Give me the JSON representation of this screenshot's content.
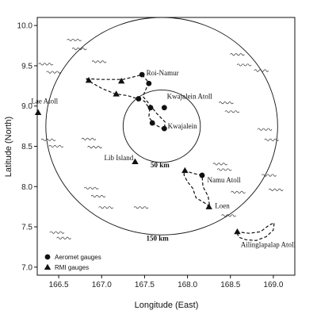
{
  "chart_data": {
    "type": "map",
    "xlabel": "Longitude (East)",
    "ylabel": "Latitude (North)",
    "xlim": [
      166.25,
      169.25
    ],
    "ylim": [
      6.9,
      10.1
    ],
    "x_ticks": [
      166.5,
      167.0,
      167.5,
      168.0,
      168.5,
      169.0
    ],
    "x_tick_labels": [
      "166.5",
      "167.0",
      "167.5",
      "168.0",
      "168.5",
      "169.0"
    ],
    "y_ticks": [
      7.0,
      7.5,
      8.0,
      8.5,
      9.0,
      9.5,
      10.0
    ],
    "y_tick_labels": [
      "7.0",
      "7.5",
      "8.0",
      "8.5",
      "9.0",
      "9.5",
      "10.0"
    ],
    "center": {
      "lon": 167.7,
      "lat": 8.75
    },
    "range_rings": [
      {
        "label": "50 km",
        "radius_deg": 0.45,
        "label_pos": {
          "lon": 167.68,
          "lat": 8.24
        }
      },
      {
        "label": "150 km",
        "radius_deg": 1.35,
        "label_pos": {
          "lon": 167.65,
          "lat": 7.33
        }
      }
    ],
    "aeromet_gauges": [
      {
        "lon": 167.47,
        "lat": 9.39
      },
      {
        "lon": 167.55,
        "lat": 9.28
      },
      {
        "lon": 167.43,
        "lat": 9.09
      },
      {
        "lon": 167.57,
        "lat": 8.98
      },
      {
        "lon": 167.73,
        "lat": 8.98
      },
      {
        "lon": 167.59,
        "lat": 8.79
      },
      {
        "lon": 167.73,
        "lat": 8.72
      },
      {
        "lon": 168.17,
        "lat": 8.14
      }
    ],
    "rmi_gauges": [
      {
        "lon": 166.85,
        "lat": 9.32
      },
      {
        "lon": 167.23,
        "lat": 9.31
      },
      {
        "lon": 167.17,
        "lat": 9.15
      },
      {
        "lon": 166.26,
        "lat": 8.92
      },
      {
        "lon": 167.39,
        "lat": 8.31
      },
      {
        "lon": 167.97,
        "lat": 8.2
      },
      {
        "lon": 168.25,
        "lat": 7.75
      },
      {
        "lon": 168.58,
        "lat": 7.44
      }
    ],
    "place_labels": [
      {
        "text": "Roi-Namur",
        "lon": 167.52,
        "lat": 9.38
      },
      {
        "text": "Kwajalein Atoll",
        "lon": 167.76,
        "lat": 9.09
      },
      {
        "text": "Kwajalein",
        "lon": 167.77,
        "lat": 8.72
      },
      {
        "text": "Lae Atoll",
        "lon": 166.18,
        "lat": 9.03
      },
      {
        "text": "Lib Island",
        "lon": 167.03,
        "lat": 8.33
      },
      {
        "text": "Namu Atoll",
        "lon": 168.23,
        "lat": 8.05
      },
      {
        "text": "Loen",
        "lon": 168.32,
        "lat": 7.73
      },
      {
        "text": "Ailinglapalap Atoll",
        "lon": 168.62,
        "lat": 7.25
      }
    ],
    "legend": {
      "position": "bottom-left",
      "items": [
        {
          "symbol": "circle",
          "label": "Aeromet gauges"
        },
        {
          "symbol": "triangle",
          "label": "RMI gauges"
        }
      ]
    },
    "atoll_outlines": [
      [
        [
          166.82,
          9.34
        ],
        [
          167.0,
          9.33
        ],
        [
          167.25,
          9.33
        ],
        [
          167.44,
          9.38
        ],
        [
          167.47,
          9.39
        ],
        [
          167.55,
          9.29
        ],
        [
          167.5,
          9.17
        ],
        [
          167.48,
          9.12
        ],
        [
          167.56,
          9.02
        ],
        [
          167.64,
          8.91
        ],
        [
          167.74,
          8.8
        ],
        [
          167.73,
          8.71
        ],
        [
          167.62,
          8.77
        ],
        [
          167.55,
          8.86
        ],
        [
          167.56,
          8.96
        ],
        [
          167.5,
          9.06
        ],
        [
          167.42,
          9.09
        ],
        [
          167.3,
          9.13
        ],
        [
          167.16,
          9.15
        ],
        [
          167.0,
          9.22
        ],
        [
          166.85,
          9.31
        ],
        [
          166.82,
          9.34
        ]
      ],
      [
        [
          167.96,
          8.2
        ],
        [
          168.08,
          8.16
        ],
        [
          168.17,
          8.14
        ],
        [
          168.18,
          8.0
        ],
        [
          168.24,
          7.88
        ],
        [
          168.26,
          7.75
        ],
        [
          168.21,
          7.79
        ],
        [
          168.1,
          7.86
        ],
        [
          168.06,
          7.98
        ],
        [
          168.0,
          8.06
        ],
        [
          167.96,
          8.14
        ],
        [
          167.96,
          8.2
        ]
      ],
      [
        [
          168.57,
          7.44
        ],
        [
          168.72,
          7.42
        ],
        [
          168.85,
          7.44
        ],
        [
          168.95,
          7.52
        ],
        [
          169.01,
          7.55
        ],
        [
          169.0,
          7.46
        ],
        [
          168.92,
          7.38
        ],
        [
          168.8,
          7.33
        ],
        [
          168.68,
          7.34
        ],
        [
          168.6,
          7.37
        ],
        [
          168.57,
          7.44
        ]
      ]
    ],
    "wave_marks": [
      [
        166.68,
        9.82
      ],
      [
        166.74,
        9.71
      ],
      [
        166.35,
        9.52
      ],
      [
        166.44,
        9.42
      ],
      [
        166.97,
        9.55
      ],
      [
        168.58,
        9.64
      ],
      [
        168.66,
        9.51
      ],
      [
        168.86,
        9.44
      ],
      [
        166.38,
        8.58
      ],
      [
        166.47,
        8.5
      ],
      [
        166.85,
        8.59
      ],
      [
        166.92,
        8.49
      ],
      [
        168.45,
        9.04
      ],
      [
        168.52,
        8.93
      ],
      [
        168.9,
        8.71
      ],
      [
        168.98,
        8.58
      ],
      [
        166.88,
        7.98
      ],
      [
        166.96,
        7.88
      ],
      [
        167.05,
        7.74
      ],
      [
        167.46,
        7.74
      ],
      [
        168.38,
        8.28
      ],
      [
        168.43,
        8.21
      ],
      [
        168.59,
        7.93
      ],
      [
        168.48,
        7.64
      ],
      [
        166.48,
        7.43
      ],
      [
        166.56,
        7.36
      ],
      [
        168.95,
        8.14
      ],
      [
        169.03,
        7.96
      ]
    ]
  }
}
